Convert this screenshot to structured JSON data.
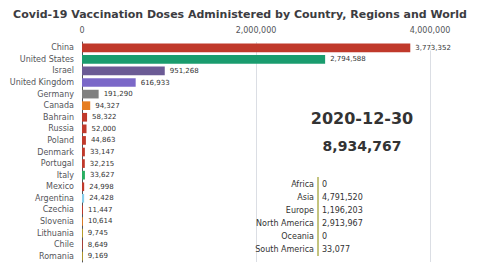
{
  "chart_data": {
    "type": "bar",
    "orientation": "horizontal",
    "title": "Covid-19 Vaccination Doses Administered by Country, Regions and World",
    "categories": [
      "China",
      "United States",
      "Israel",
      "United Kingdom",
      "Germany",
      "Canada",
      "Bahrain",
      "Russia",
      "Poland",
      "Denmark",
      "Portugal",
      "Italy",
      "Mexico",
      "Argentina",
      "Czechia",
      "Slovenia",
      "Lithuania",
      "Chile",
      "Romania"
    ],
    "values": [
      3773352,
      2794588,
      951268,
      616933,
      191290,
      94327,
      58322,
      52000,
      44863,
      33147,
      32215,
      33627,
      24998,
      24428,
      11447,
      10614,
      9745,
      8649,
      9169
    ],
    "value_labels": [
      "3,773,352",
      "2,794,588",
      "951,268",
      "616,933",
      "191,290",
      "94,327",
      "58,322",
      "52,000",
      "44,863",
      "33,147",
      "32,215",
      "33,627",
      "24,998",
      "24,428",
      "11,447",
      "10,614",
      "9,745",
      "8,649",
      "9,169"
    ],
    "colors": [
      "#c0392b",
      "#1a9c6e",
      "#6b5b95",
      "#7b68c8",
      "#808080",
      "#e67e22",
      "#c0392b",
      "#c0392b",
      "#c0392b",
      "#c0392b",
      "#c0392b",
      "#27ae60",
      "#c0392b",
      "#87ceeb",
      "#c0392b",
      "#e67e22",
      "#c8a820",
      "#c0392b",
      "#c8a820"
    ],
    "data_labels": true,
    "xlim": [
      0,
      4000000
    ],
    "xticks": [
      0,
      {
        "value": 2000000,
        "label": "2,000,000"
      },
      {
        "value": 4000000,
        "label": "4,000,000"
      }
    ],
    "grid": true,
    "annotations": [
      "2020-12-30",
      "8,934,767"
    ],
    "regions": {
      "names": [
        "Africa",
        "Asia",
        "Europe",
        "North America",
        "Oceania",
        "South America"
      ],
      "labels": [
        "0",
        "4,791,520",
        "1,196,203",
        "2,913,967",
        "0",
        "33,077"
      ]
    }
  }
}
